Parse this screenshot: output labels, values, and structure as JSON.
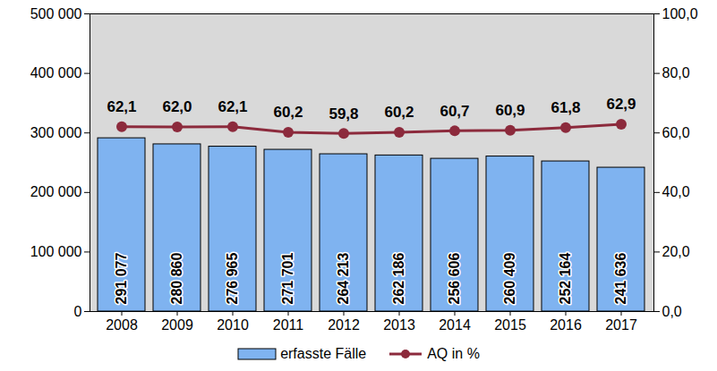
{
  "chart_data": {
    "type": "bar",
    "categories": [
      "2008",
      "2009",
      "2010",
      "2011",
      "2012",
      "2013",
      "2014",
      "2015",
      "2016",
      "2017"
    ],
    "series": [
      {
        "name": "erfasste Fälle",
        "type": "bar",
        "axis": "y",
        "color": "#7fb3f0",
        "values": [
          291077,
          280860,
          276965,
          271701,
          264213,
          262186,
          256606,
          260409,
          252164,
          241636
        ],
        "value_labels": [
          "291 077",
          "280 860",
          "276 965",
          "271 701",
          "264 213",
          "262 186",
          "256 606",
          "260 409",
          "252 164",
          "241 636"
        ]
      },
      {
        "name": "AQ in %",
        "type": "line",
        "axis": "y2",
        "color": "#8c2a3c",
        "marker": "circle",
        "values": [
          62.1,
          62.0,
          62.1,
          60.2,
          59.8,
          60.2,
          60.7,
          60.9,
          61.8,
          62.9
        ],
        "value_labels": [
          "62,1",
          "62,0",
          "62,1",
          "60,2",
          "59,8",
          "60,2",
          "60,7",
          "60,9",
          "61,8",
          "62,9"
        ]
      }
    ],
    "ylim": [
      0,
      500000
    ],
    "yticks": [
      0,
      {
        "value": 100000,
        "label": "100 000"
      },
      {
        "value": 200000,
        "label": "200 000"
      },
      {
        "value": 300000,
        "label": "300 000"
      },
      {
        "value": 400000,
        "label": "400 000"
      },
      {
        "value": 500000,
        "label": "500 000"
      }
    ],
    "y2lim": [
      0,
      100
    ],
    "y2ticks": [
      {
        "value": 0,
        "label": "0,0"
      },
      {
        "value": 20,
        "label": "20,0"
      },
      {
        "value": 40,
        "label": "40,0"
      },
      {
        "value": 60,
        "label": "60,0"
      },
      {
        "value": 80,
        "label": "80,0"
      },
      {
        "value": 100,
        "label": "100,0"
      }
    ],
    "grid": false,
    "data_labels": true,
    "legend": "bottom"
  }
}
